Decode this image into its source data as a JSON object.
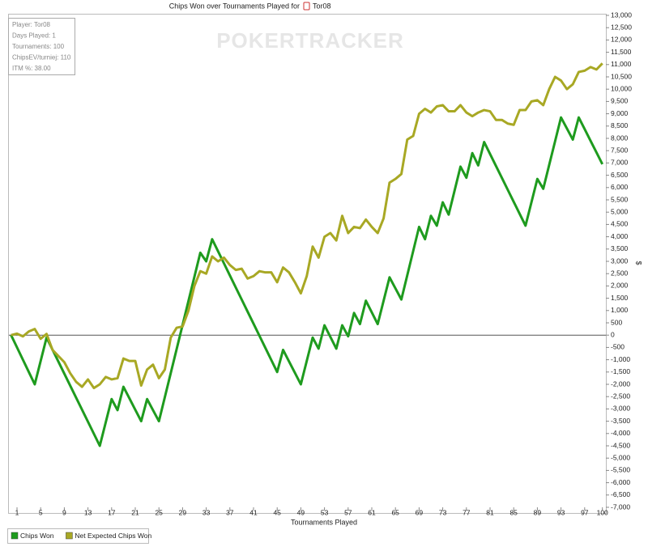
{
  "chart_data": {
    "type": "line",
    "title": "Chips Won over Tournaments Played for",
    "title_name": "Tor08",
    "watermark": "POKERTRACKER",
    "info": [
      "Player: Tor08",
      "Days Played: 1",
      "Tournaments: 100",
      "ChipsEV/turniej: 110",
      "ITM %: 38.00"
    ],
    "xlabel": "Tournaments Played",
    "ylabel": "$",
    "x": [
      0,
      1,
      2,
      3,
      4,
      5,
      6,
      7,
      8,
      9,
      10,
      11,
      12,
      13,
      14,
      15,
      16,
      17,
      18,
      19,
      20,
      21,
      22,
      23,
      24,
      25,
      26,
      27,
      28,
      29,
      30,
      31,
      32,
      33,
      34,
      35,
      36,
      37,
      38,
      39,
      40,
      41,
      42,
      43,
      44,
      45,
      46,
      47,
      48,
      49,
      50,
      51,
      52,
      53,
      54,
      55,
      56,
      57,
      58,
      59,
      60,
      61,
      62,
      63,
      64,
      65,
      66,
      67,
      68,
      69,
      70,
      71,
      72,
      73,
      74,
      75,
      76,
      77,
      78,
      79,
      80,
      81,
      82,
      83,
      84,
      85,
      86,
      87,
      88,
      89,
      90,
      91,
      92,
      93,
      94,
      95,
      96,
      97,
      98,
      99,
      100
    ],
    "series": [
      {
        "name": "Chips Won",
        "color": "#1e9b1e",
        "values": [
          0,
          -500,
          -1000,
          -1500,
          -2000,
          -1050,
          -100,
          -589,
          -1078,
          -1567,
          -2056,
          -2544,
          -3033,
          -3522,
          -4011,
          -4500,
          -3550,
          -2600,
          -3050,
          -2100,
          -2567,
          -3033,
          -3500,
          -2600,
          -3050,
          -3500,
          -2521,
          -1543,
          -564,
          414,
          1393,
          2371,
          3350,
          3000,
          3900,
          3409,
          2918,
          2427,
          1936,
          1445,
          955,
          464,
          -27,
          -518,
          -1009,
          -1500,
          -600,
          -1067,
          -1533,
          -2000,
          -1050,
          -100,
          -550,
          400,
          -75,
          -550,
          400,
          -50,
          900,
          450,
          1400,
          925,
          450,
          1400,
          2350,
          1900,
          1450,
          2433,
          3417,
          4400,
          3900,
          4850,
          4450,
          5400,
          4900,
          5875,
          6850,
          6400,
          7400,
          6900,
          7850,
          7364,
          6879,
          6393,
          5907,
          5421,
          4936,
          4450,
          5400,
          6350,
          5950,
          6917,
          7883,
          8850,
          8400,
          7950,
          8850,
          8375,
          7900,
          7425,
          6950
        ]
      },
      {
        "name": "Net Expected Chips Won",
        "color": "#a8a824",
        "values": [
          0,
          60,
          -50,
          150,
          250,
          -150,
          50,
          -600,
          -850,
          -1100,
          -1550,
          -1900,
          -2100,
          -1800,
          -2150,
          -2000,
          -1700,
          -1800,
          -1750,
          -950,
          -1050,
          -1050,
          -2050,
          -1400,
          -1200,
          -1750,
          -1400,
          -100,
          300,
          350,
          1000,
          2000,
          2600,
          2500,
          3200,
          3000,
          3150,
          2850,
          2650,
          2700,
          2300,
          2400,
          2600,
          2550,
          2550,
          2150,
          2750,
          2550,
          2150,
          1700,
          2400,
          3600,
          3150,
          4000,
          4150,
          3850,
          4850,
          4150,
          4400,
          4350,
          4700,
          4400,
          4150,
          4750,
          6200,
          6350,
          6550,
          7950,
          8100,
          9000,
          9200,
          9050,
          9300,
          9350,
          9100,
          9100,
          9350,
          9050,
          8900,
          9050,
          9150,
          9100,
          8750,
          8750,
          8600,
          8550,
          9150,
          9150,
          9500,
          9550,
          9350,
          10000,
          10500,
          10350,
          10000,
          10200,
          10700,
          10750,
          10900,
          10800,
          11050
        ]
      }
    ],
    "xlim": [
      0,
      100
    ],
    "xticks": [
      1,
      5,
      9,
      13,
      17,
      21,
      25,
      29,
      33,
      37,
      41,
      45,
      49,
      53,
      57,
      61,
      65,
      69,
      73,
      77,
      81,
      85,
      89,
      93,
      97,
      100
    ],
    "ylim": [
      -7000,
      13000
    ],
    "yticks": [
      {
        "value": -7000,
        "label": "-7,000"
      },
      {
        "value": -6500,
        "label": "-6,500"
      },
      {
        "value": -6000,
        "label": "-6,000"
      },
      {
        "value": -5500,
        "label": "-5,500"
      },
      {
        "value": -5000,
        "label": "-5,000"
      },
      {
        "value": -4500,
        "label": "-4,500"
      },
      {
        "value": -4000,
        "label": "-4,000"
      },
      {
        "value": -3500,
        "label": "-3,500"
      },
      {
        "value": -3000,
        "label": "-3,000"
      },
      {
        "value": -2500,
        "label": "-2,500"
      },
      {
        "value": -2000,
        "label": "-2,000"
      },
      {
        "value": -1500,
        "label": "-1,500"
      },
      {
        "value": -1000,
        "label": "-1,000"
      },
      -500,
      0,
      500,
      {
        "value": 1000,
        "label": "1,000"
      },
      {
        "value": 1500,
        "label": "1,500"
      },
      {
        "value": 2000,
        "label": "2,000"
      },
      {
        "value": 2500,
        "label": "2,500"
      },
      {
        "value": 3000,
        "label": "3,000"
      },
      {
        "value": 3500,
        "label": "3,500"
      },
      {
        "value": 4000,
        "label": "4,000"
      },
      {
        "value": 4500,
        "label": "4,500"
      },
      {
        "value": 5000,
        "label": "5,000"
      },
      {
        "value": 5500,
        "label": "5,500"
      },
      {
        "value": 6000,
        "label": "6,000"
      },
      {
        "value": 6500,
        "label": "6,500"
      },
      {
        "value": 7000,
        "label": "7,000"
      },
      {
        "value": 7500,
        "label": "7,500"
      },
      {
        "value": 8000,
        "label": "8,000"
      },
      {
        "value": 8500,
        "label": "8,500"
      },
      {
        "value": 9000,
        "label": "9,000"
      },
      {
        "value": 9500,
        "label": "9,500"
      },
      {
        "value": 10000,
        "label": "10,000"
      },
      {
        "value": 10500,
        "label": "10,500"
      },
      {
        "value": 11000,
        "label": "11,000"
      },
      {
        "value": 11500,
        "label": "11,500"
      },
      {
        "value": 12000,
        "label": "12,000"
      },
      {
        "value": 12500,
        "label": "12,500"
      },
      {
        "value": 13000,
        "label": "13,000"
      }
    ],
    "grid": false
  }
}
